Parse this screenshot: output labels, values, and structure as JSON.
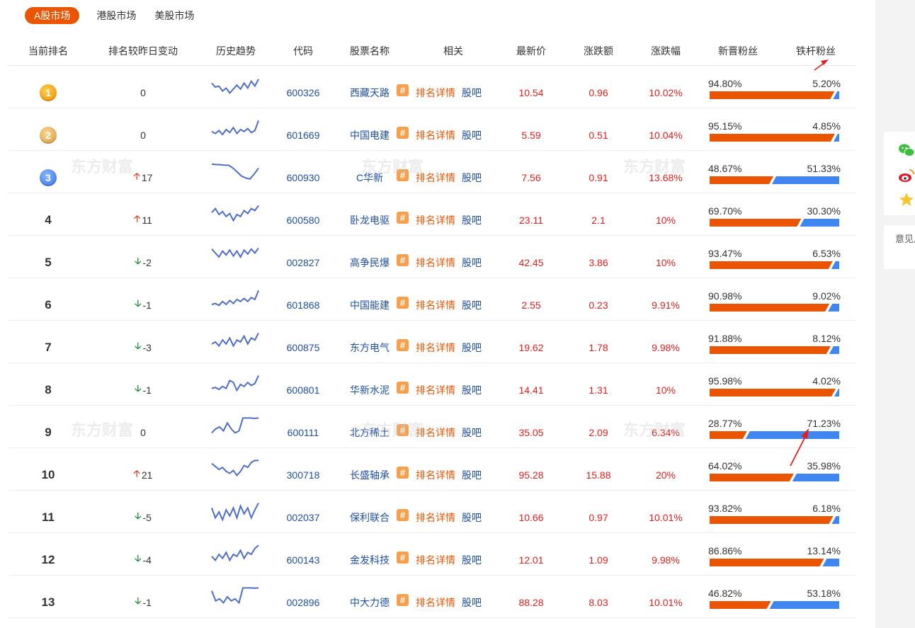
{
  "tabs": [
    {
      "label": "A股市场",
      "active": true
    },
    {
      "label": "港股市场",
      "active": false
    },
    {
      "label": "美股市场",
      "active": false
    }
  ],
  "headers": [
    "当前排名",
    "排名较昨日变动",
    "历史趋势",
    "代码",
    "股票名称",
    "相关",
    "最新价",
    "涨跌额",
    "涨跌幅",
    "新晋粉丝",
    "铁杆粉丝"
  ],
  "related": {
    "detail": "排名详情",
    "bar": "股吧",
    "hash": "#"
  },
  "colors": {
    "accent": "#ea5504",
    "new_fans": "#ea5504",
    "loyal_fans": "#3f86f0",
    "up": "#e02020",
    "down": "#1f8e3a",
    "link": "#1f4ea3"
  },
  "rows": [
    {
      "rank": "1",
      "medal": "gold",
      "change": "0",
      "dir": "none",
      "code": "600326",
      "name": "西藏天路",
      "price": "10.54",
      "amt": "0.96",
      "pct": "10.02%",
      "new_fans": "94.80%",
      "loyal_fans": "5.20%",
      "new_frac": 0.948,
      "trend": [
        0.3,
        0.5,
        0.45,
        0.7,
        0.55,
        0.8,
        0.6,
        0.4,
        0.6,
        0.3,
        0.55,
        0.2,
        0.45,
        0.1
      ]
    },
    {
      "rank": "2",
      "medal": "silver",
      "change": "0",
      "dir": "none",
      "code": "601669",
      "name": "中国电建",
      "price": "5.59",
      "amt": "0.51",
      "pct": "10.04%",
      "new_fans": "95.15%",
      "loyal_fans": "4.85%",
      "new_frac": 0.9515,
      "trend": [
        0.6,
        0.7,
        0.55,
        0.75,
        0.5,
        0.65,
        0.4,
        0.7,
        0.5,
        0.6,
        0.45,
        0.65,
        0.55,
        0.05
      ]
    },
    {
      "rank": "3",
      "medal": "blue",
      "change": "17",
      "dir": "up",
      "code": "600930",
      "name": "C华新",
      "price": "7.56",
      "amt": "0.91",
      "pct": "13.68%",
      "new_fans": "48.67%",
      "loyal_fans": "51.33%",
      "new_frac": 0.4867,
      "trend": [
        0.1,
        0.12,
        0.13,
        0.15,
        0.16,
        0.3,
        0.5,
        0.7,
        0.8,
        0.85,
        0.6,
        0.3
      ]
    },
    {
      "rank": "4",
      "medal": "",
      "change": "11",
      "dir": "up",
      "code": "600580",
      "name": "卧龙电驱",
      "price": "23.11",
      "amt": "2.1",
      "pct": "10%",
      "new_fans": "69.70%",
      "loyal_fans": "30.30%",
      "new_frac": 0.697,
      "trend": [
        0.4,
        0.2,
        0.5,
        0.35,
        0.6,
        0.45,
        0.8,
        0.5,
        0.6,
        0.3,
        0.45,
        0.2,
        0.3,
        0.05
      ]
    },
    {
      "rank": "5",
      "medal": "",
      "change": "-2",
      "dir": "down",
      "code": "002827",
      "name": "高争民爆",
      "price": "42.45",
      "amt": "3.86",
      "pct": "10%",
      "new_fans": "93.47%",
      "loyal_fans": "6.53%",
      "new_frac": 0.9347,
      "trend": [
        0.1,
        0.3,
        0.5,
        0.2,
        0.4,
        0.15,
        0.45,
        0.2,
        0.5,
        0.15,
        0.35,
        0.1,
        0.3,
        0.05
      ]
    },
    {
      "rank": "6",
      "medal": "",
      "change": "-1",
      "dir": "down",
      "code": "601868",
      "name": "中国能建",
      "price": "2.55",
      "amt": "0.23",
      "pct": "9.91%",
      "new_fans": "90.98%",
      "loyal_fans": "9.02%",
      "new_frac": 0.9098,
      "trend": [
        0.75,
        0.7,
        0.8,
        0.6,
        0.75,
        0.55,
        0.7,
        0.5,
        0.6,
        0.45,
        0.6,
        0.4,
        0.5,
        0.05
      ]
    },
    {
      "rank": "7",
      "medal": "",
      "change": "-3",
      "dir": "down",
      "code": "600875",
      "name": "东方电气",
      "price": "19.62",
      "amt": "1.78",
      "pct": "9.98%",
      "new_fans": "91.88%",
      "loyal_fans": "8.12%",
      "new_frac": 0.9188,
      "trend": [
        0.6,
        0.5,
        0.7,
        0.4,
        0.6,
        0.3,
        0.7,
        0.4,
        0.5,
        0.2,
        0.6,
        0.3,
        0.4,
        0.05
      ]
    },
    {
      "rank": "8",
      "medal": "",
      "change": "-1",
      "dir": "down",
      "code": "600801",
      "name": "华新水泥",
      "price": "14.41",
      "amt": "1.31",
      "pct": "10%",
      "new_fans": "95.98%",
      "loyal_fans": "4.02%",
      "new_frac": 0.9598,
      "trend": [
        0.7,
        0.65,
        0.75,
        0.6,
        0.7,
        0.3,
        0.4,
        0.8,
        0.5,
        0.6,
        0.4,
        0.55,
        0.45,
        0.05
      ]
    },
    {
      "rank": "9",
      "medal": "",
      "change": "0",
      "dir": "none",
      "code": "600111",
      "name": "北方稀土",
      "price": "35.05",
      "amt": "2.09",
      "pct": "6.34%",
      "new_fans": "28.77%",
      "loyal_fans": "71.23%",
      "new_frac": 0.2877,
      "trend": [
        0.8,
        0.6,
        0.5,
        0.7,
        0.3,
        0.6,
        0.8,
        0.7,
        0.05,
        0.05,
        0.05,
        0.07,
        0.05
      ]
    },
    {
      "rank": "10",
      "medal": "",
      "change": "21",
      "dir": "up",
      "code": "300718",
      "name": "长盛轴承",
      "price": "95.28",
      "amt": "15.88",
      "pct": "20%",
      "new_fans": "64.02%",
      "loyal_fans": "35.98%",
      "new_frac": 0.6402,
      "trend": [
        0.2,
        0.35,
        0.5,
        0.4,
        0.6,
        0.7,
        0.55,
        0.8,
        0.6,
        0.3,
        0.4,
        0.15,
        0.05,
        0.05
      ]
    },
    {
      "rank": "11",
      "medal": "",
      "change": "-5",
      "dir": "down",
      "code": "002037",
      "name": "保利联合",
      "price": "10.66",
      "amt": "0.97",
      "pct": "10.01%",
      "new_fans": "93.82%",
      "loyal_fans": "6.18%",
      "new_frac": 0.9382,
      "trend": [
        0.3,
        0.8,
        0.5,
        0.9,
        0.4,
        0.7,
        0.3,
        0.8,
        0.2,
        0.6,
        0.3,
        0.8,
        0.4,
        0.05
      ]
    },
    {
      "rank": "12",
      "medal": "",
      "change": "-4",
      "dir": "down",
      "code": "600143",
      "name": "金发科技",
      "price": "12.01",
      "amt": "1.09",
      "pct": "9.98%",
      "new_fans": "86.86%",
      "loyal_fans": "13.14%",
      "new_frac": 0.8686,
      "trend": [
        0.6,
        0.8,
        0.5,
        0.7,
        0.4,
        0.8,
        0.5,
        0.6,
        0.3,
        0.7,
        0.4,
        0.5,
        0.2,
        0.05
      ]
    },
    {
      "rank": "13",
      "medal": "",
      "change": "-1",
      "dir": "down",
      "code": "002896",
      "name": "中大力德",
      "price": "88.28",
      "amt": "8.03",
      "pct": "10.01%",
      "new_fans": "46.82%",
      "loyal_fans": "53.18%",
      "new_frac": 0.4682,
      "trend": [
        0.2,
        0.7,
        0.6,
        0.8,
        0.5,
        0.7,
        0.6,
        0.8,
        0.05,
        0.05,
        0.05,
        0.06,
        0.05
      ]
    }
  ],
  "sidebar": {
    "feedback": "意见反馈",
    "icons": [
      "wechat-icon",
      "weibo-icon",
      "star-icon"
    ]
  }
}
